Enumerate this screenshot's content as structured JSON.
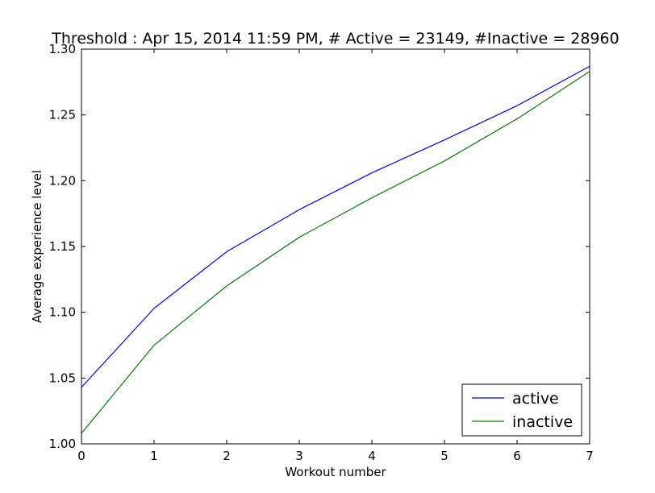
{
  "chart_data": {
    "type": "line",
    "title": "Threshold : Apr 15, 2014 11:59 PM, # Active = 23149, #Inactive = 28960",
    "xlabel": "Workout number",
    "ylabel": "Average experience level",
    "xlim": [
      0,
      7
    ],
    "ylim": [
      1.0,
      1.3
    ],
    "xticks": [
      "0",
      "1",
      "2",
      "3",
      "4",
      "5",
      "6",
      "7"
    ],
    "yticks": [
      "1.00",
      "1.05",
      "1.10",
      "1.15",
      "1.20",
      "1.25",
      "1.30"
    ],
    "x": [
      0,
      1,
      2,
      3,
      4,
      5,
      6,
      7
    ],
    "series": [
      {
        "name": "active",
        "color": "#0000ff",
        "values": [
          1.043,
          1.103,
          1.146,
          1.178,
          1.206,
          1.231,
          1.257,
          1.287
        ]
      },
      {
        "name": "inactive",
        "color": "#008000",
        "values": [
          1.008,
          1.075,
          1.12,
          1.157,
          1.187,
          1.215,
          1.247,
          1.283
        ]
      }
    ],
    "grid": false,
    "legend_position": "lower-right"
  }
}
